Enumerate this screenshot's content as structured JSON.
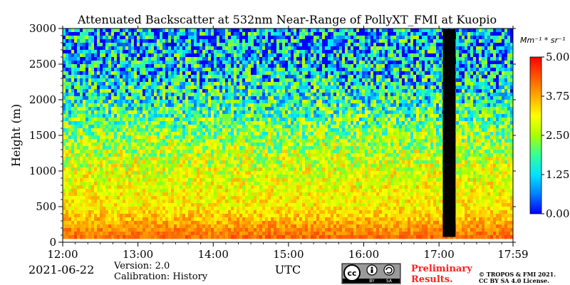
{
  "chart_data": {
    "type": "heatmap",
    "title": "Attenuated Backscatter at 532nm Near-Range of PollyXT_FMI at Kuopio",
    "ylabel": "Height (m)",
    "xlabel": "UTC",
    "x_range": [
      "12:00",
      "17:59"
    ],
    "x_ticks": [
      "12:00",
      "13:00",
      "14:00",
      "15:00",
      "16:00",
      "17:00",
      "17:59"
    ],
    "x_tick_hours": [
      0,
      1,
      2,
      3,
      4,
      5,
      5.983
    ],
    "ylim": [
      0,
      3000
    ],
    "y_ticks": [
      0,
      500,
      1000,
      1500,
      2000,
      2500,
      3000
    ],
    "colorbar": {
      "unit": "Mm⁻¹ * sr⁻¹",
      "range": [
        0,
        5
      ],
      "tick_labels": [
        "0.00",
        "1.25",
        "2.50",
        "3.75",
        "5.00"
      ],
      "tick_values": [
        0,
        1.25,
        2.5,
        3.75,
        5.0
      ],
      "colormap": "jet",
      "colors": [
        "#0000ff",
        "#0080ff",
        "#00e5ff",
        "#33ff99",
        "#aaff00",
        "#ffff00",
        "#ffaa00",
        "#ff5500",
        "#ff0000"
      ]
    },
    "no_data_gaps": [
      {
        "start_hour": 5.05,
        "end_hour": 5.22
      }
    ],
    "profile_approx": [
      {
        "height": 75,
        "value": 4.2
      },
      {
        "height": 500,
        "value": 3.2
      },
      {
        "height": 1000,
        "value": 2.9
      },
      {
        "height": 1500,
        "value": 2.4
      },
      {
        "height": 2000,
        "value": 1.6
      },
      {
        "height": 2500,
        "value": 1.1
      },
      {
        "height": 3000,
        "value": 0.8
      }
    ]
  },
  "footer": {
    "date": "2021-06-22",
    "version": "Version: 2.0",
    "calibration": "Calibration: History",
    "xlabel": "UTC",
    "preliminary_line1": "Preliminary",
    "preliminary_line2": "Results.",
    "copyright_line1": "© TROPOS & FMI 2021.",
    "copyright_line2": "CC BY SA 4.0 License.",
    "license_badge": {
      "label_by": "BY",
      "label_sa": "SA",
      "icon": "cc-by-sa-icon"
    }
  },
  "colors": {
    "preliminary": "#ff2020",
    "gap": "#000000",
    "badge_bg": "#9a9a9a"
  }
}
